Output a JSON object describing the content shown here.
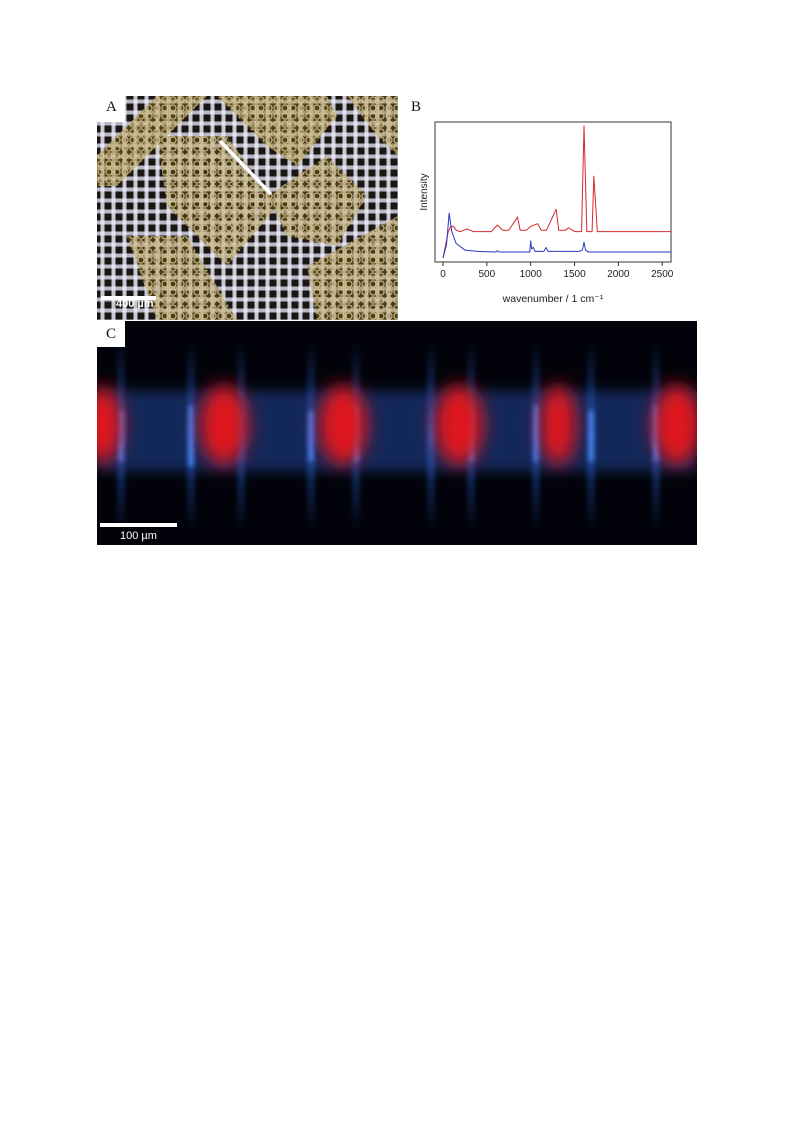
{
  "figure": {
    "panel_a": {
      "letter": "A",
      "scale_bar_label": "400 µm"
    },
    "panel_b": {
      "letter": "B"
    },
    "panel_c": {
      "letter": "C",
      "scale_bar_label": "100 µm"
    }
  },
  "chart_data": {
    "type": "line",
    "xlabel": "wavenumber / 1 cm⁻¹",
    "ylabel": "Intensity",
    "xlim": [
      0,
      2600
    ],
    "x_ticks": [
      0,
      500,
      1000,
      1500,
      2000,
      2500
    ],
    "y_tick_labels": false,
    "grid": false,
    "series": [
      {
        "color": "#d62a2a",
        "x": [
          0,
          60,
          90,
          120,
          150,
          200,
          270,
          350,
          550,
          620,
          680,
          750,
          850,
          880,
          950,
          1000,
          1080,
          1120,
          1180,
          1290,
          1320,
          1400,
          1430,
          1500,
          1580,
          1608,
          1640,
          1700,
          1720,
          1760,
          2000,
          2600
        ],
        "y": [
          0.0,
          0.2,
          0.24,
          0.24,
          0.21,
          0.2,
          0.22,
          0.2,
          0.2,
          0.25,
          0.21,
          0.21,
          0.31,
          0.21,
          0.21,
          0.24,
          0.26,
          0.21,
          0.21,
          0.37,
          0.21,
          0.21,
          0.23,
          0.2,
          0.2,
          1.0,
          0.2,
          0.2,
          0.62,
          0.2,
          0.2,
          0.2
        ]
      },
      {
        "color": "#2b36c4",
        "x": [
          0,
          40,
          70,
          100,
          150,
          250,
          400,
          600,
          620,
          640,
          900,
          990,
          1000,
          1010,
          1030,
          1050,
          1150,
          1175,
          1200,
          1550,
          1590,
          1608,
          1625,
          1660,
          2000,
          2600
        ],
        "y": [
          0.0,
          0.1,
          0.34,
          0.2,
          0.11,
          0.06,
          0.05,
          0.045,
          0.055,
          0.045,
          0.045,
          0.045,
          0.13,
          0.07,
          0.08,
          0.05,
          0.05,
          0.08,
          0.05,
          0.05,
          0.06,
          0.12,
          0.06,
          0.045,
          0.045,
          0.045
        ]
      }
    ]
  }
}
